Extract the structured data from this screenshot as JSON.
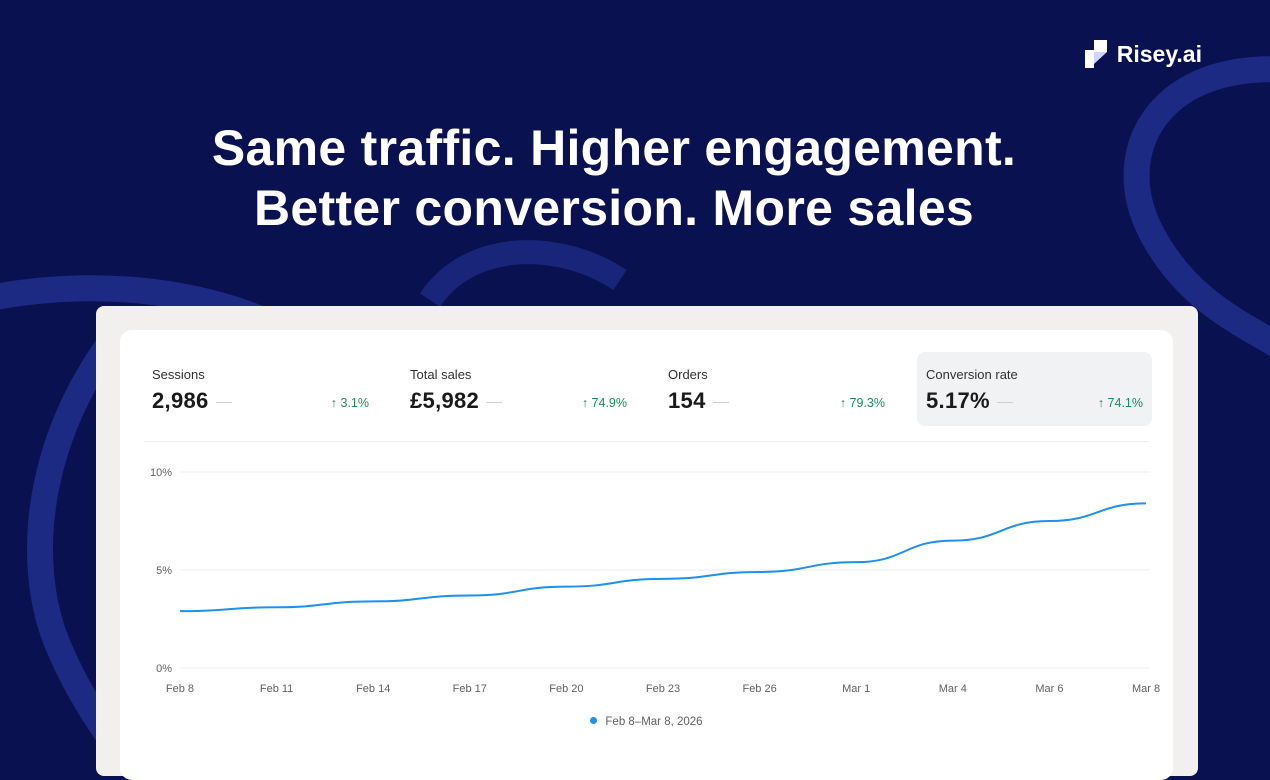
{
  "brand": {
    "name": "Risey.ai"
  },
  "headline": {
    "line1": "Same traffic. Higher engagement.",
    "line2": "Better conversion. More sales"
  },
  "metrics": [
    {
      "label": "Sessions",
      "value": "2,986",
      "change": "3.1%"
    },
    {
      "label": "Total sales",
      "value": "£5,982",
      "change": "74.9%"
    },
    {
      "label": "Orders",
      "value": "154",
      "change": "79.3%"
    },
    {
      "label": "Conversion rate",
      "value": "5.17%",
      "change": "74.1%"
    }
  ],
  "colors": {
    "background": "#0a1150",
    "line": "#1e90ee",
    "positive": "#1b8a5a"
  },
  "chart_data": {
    "type": "line",
    "x": [
      "Feb 8",
      "Feb 11",
      "Feb 14",
      "Feb 17",
      "Feb 20",
      "Feb 23",
      "Feb 26",
      "Mar 1",
      "Mar 4",
      "Mar 6",
      "Mar 8"
    ],
    "y_ticks": [
      "0%",
      "5%",
      "10%"
    ],
    "ylim": [
      0,
      10
    ],
    "grid": true,
    "series": [
      {
        "name": "Feb 8–Mar 8, 2026",
        "values": [
          2.9,
          3.1,
          3.4,
          3.7,
          4.15,
          4.55,
          4.9,
          5.4,
          6.5,
          7.5,
          8.4
        ]
      }
    ],
    "legend": "bottom-center"
  }
}
